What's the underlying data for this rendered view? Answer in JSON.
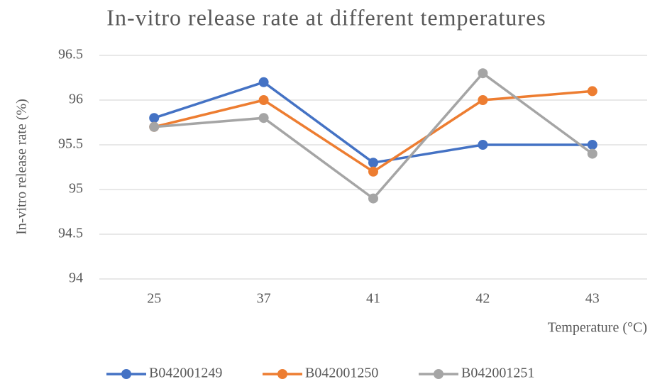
{
  "chart_data": {
    "type": "line",
    "title": "In-vitro release rate at different temperatures",
    "x_label": "Temperature (°C)",
    "y_label": "In-vitro release rate (%)",
    "categories": [
      "25",
      "37",
      "41",
      "42",
      "43"
    ],
    "series": [
      {
        "name": "B042001249",
        "color": "#4472c4",
        "values": [
          95.8,
          96.2,
          95.3,
          95.5,
          95.5
        ]
      },
      {
        "name": "B042001250",
        "color": "#ed7d31",
        "values": [
          95.7,
          96.0,
          95.2,
          96.0,
          96.1
        ]
      },
      {
        "name": "B042001251",
        "color": "#a5a5a5",
        "values": [
          95.7,
          95.8,
          94.9,
          96.3,
          95.4
        ]
      }
    ],
    "ylim": [
      94,
      96.5
    ],
    "yticks": [
      94,
      94.5,
      95,
      95.5,
      96,
      96.5
    ],
    "grid": true,
    "legend": "bottom"
  }
}
